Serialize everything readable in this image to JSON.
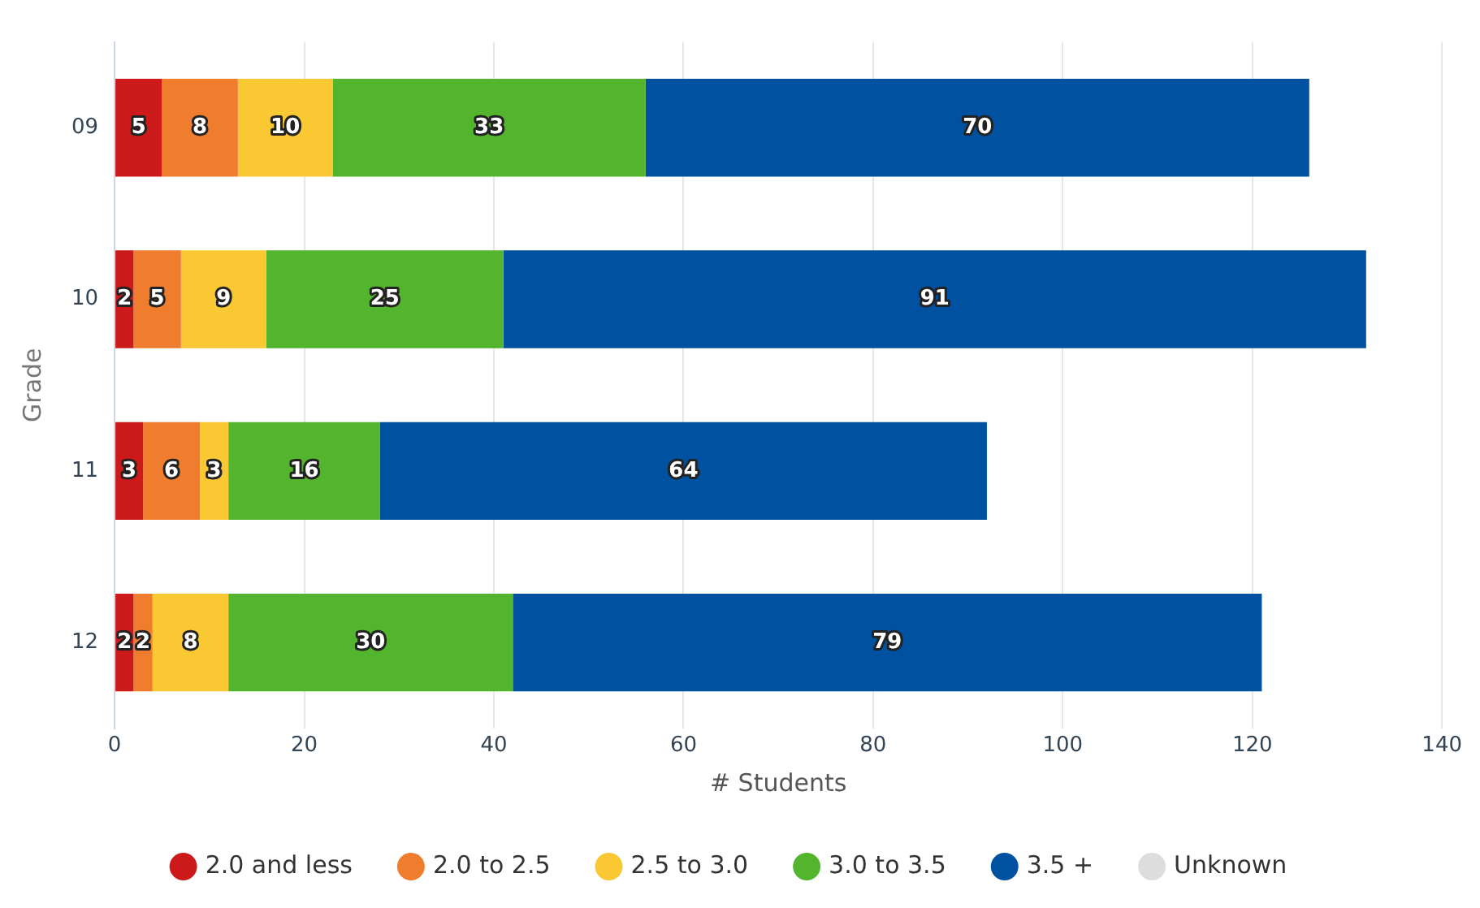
{
  "chart_data": {
    "type": "bar",
    "orientation": "horizontal",
    "stacked": true,
    "xlabel": "# Students",
    "ylabel": "Grade",
    "categories": [
      "09",
      "10",
      "11",
      "12"
    ],
    "series": [
      {
        "name": "2.0 and less",
        "color": "#cc1a1a",
        "values": [
          5,
          2,
          3,
          2
        ]
      },
      {
        "name": "2.0 to 2.5",
        "color": "#f07c2e",
        "values": [
          8,
          5,
          6,
          2
        ]
      },
      {
        "name": "2.5 to 3.0",
        "color": "#f9c832",
        "values": [
          10,
          9,
          3,
          8
        ]
      },
      {
        "name": "3.0 to 3.5",
        "color": "#52b52d",
        "values": [
          33,
          25,
          16,
          30
        ]
      },
      {
        "name": "3.5 +",
        "color": "#0051a0",
        "values": [
          70,
          91,
          64,
          79
        ]
      },
      {
        "name": "Unknown",
        "color": "#dddddd",
        "values": [
          null,
          null,
          null,
          null
        ]
      }
    ],
    "xlim": [
      0,
      140
    ],
    "xticks": [
      0,
      20,
      40,
      60,
      80,
      100,
      120,
      140
    ],
    "grid": "x",
    "legend": "bottom",
    "marker": "circle",
    "data_labels": true
  }
}
